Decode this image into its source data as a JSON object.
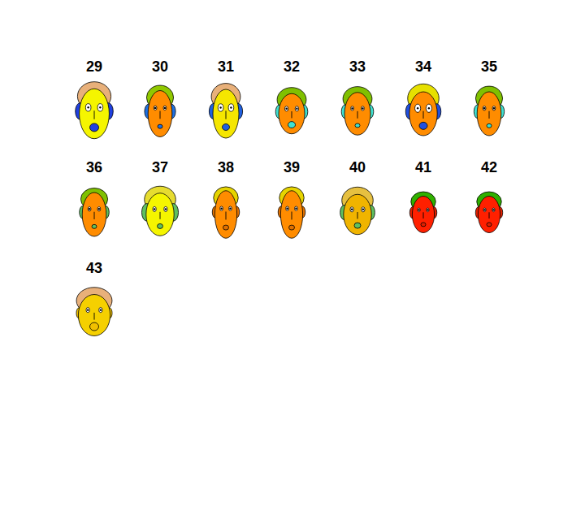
{
  "chart_data": {
    "type": "faces",
    "categories": [
      29,
      30,
      31,
      32,
      33,
      34,
      35,
      36,
      37,
      38,
      39,
      40,
      41,
      42,
      43
    ],
    "colors": [
      "#f5f500",
      "#ff8c00",
      "#f5e600",
      "#ff8c00",
      "#ff8c00",
      "#ff8c00",
      "#ff8c00",
      "#ff8c00",
      "#f5f500",
      "#ff8c00",
      "#ff8c00",
      "#f0b400",
      "#ff2000",
      "#ff2000",
      "#f5d000"
    ],
    "hair_colors": [
      "#e8b07a",
      "#90c800",
      "#e8b07a",
      "#80c000",
      "#80c000",
      "#e6e000",
      "#80c000",
      "#80c000",
      "#e6dc30",
      "#e6d400",
      "#e6d400",
      "#e6c040",
      "#30b000",
      "#30b000",
      "#e8b07a"
    ],
    "ear_colors": [
      "#2040e0",
      "#2070e0",
      "#2060e0",
      "#40e0d0",
      "#40e0d0",
      "#2050e0",
      "#40e0d0",
      "#60c060",
      "#60c060",
      "#e07000",
      "#e07000",
      "#60c060",
      "#e02000",
      "#e02000",
      "#f0c000"
    ],
    "face_width": [
      0.7,
      0.4,
      0.5,
      0.5,
      0.5,
      0.6,
      0.4,
      0.4,
      0.6,
      0.3,
      0.3,
      0.6,
      0.3,
      0.3,
      0.8
    ],
    "face_height": [
      0.85,
      0.7,
      0.8,
      0.45,
      0.55,
      0.6,
      0.6,
      0.6,
      0.55,
      0.75,
      0.75,
      0.45,
      0.3,
      0.3,
      0.5
    ],
    "hair_height": [
      0.7,
      0.5,
      0.6,
      0.5,
      0.5,
      0.7,
      0.5,
      0.4,
      0.6,
      0.4,
      0.4,
      0.6,
      0.3,
      0.3,
      0.6
    ],
    "eye_size": [
      0.8,
      0.3,
      0.8,
      0.4,
      0.3,
      0.9,
      0.3,
      0.3,
      0.4,
      0.3,
      0.3,
      0.4,
      0.2,
      0.2,
      0.4
    ],
    "mouth_size": [
      0.7,
      0.2,
      0.5,
      0.5,
      0.2,
      0.6,
      0.2,
      0.2,
      0.3,
      0.3,
      0.3,
      0.4,
      0.2,
      0.2,
      0.7
    ],
    "ear_size": [
      0.7,
      0.5,
      0.6,
      0.4,
      0.4,
      0.6,
      0.4,
      0.3,
      0.8,
      0.2,
      0.2,
      0.5,
      0.2,
      0.2,
      0.1
    ]
  }
}
